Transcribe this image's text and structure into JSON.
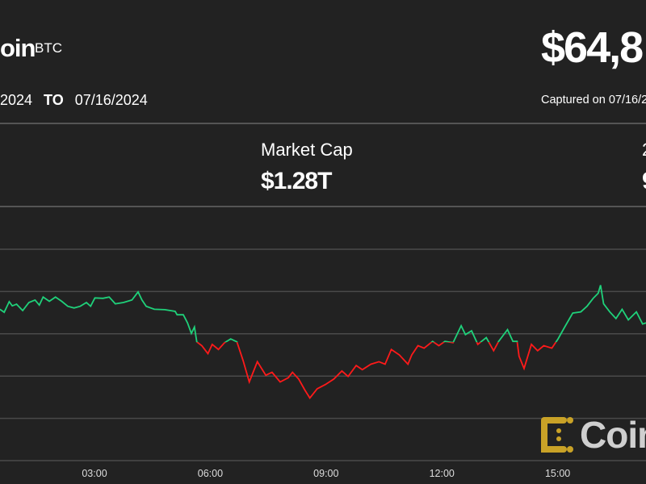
{
  "header": {
    "name_fragment": "oin",
    "ticker": "BTC",
    "price_fragment": "$64,8",
    "range_from_fragment": "2024",
    "range_to_label": "TO",
    "range_to": "07/16/2024",
    "captured_fragment": "Captured on 07/16/2"
  },
  "stats": [
    {
      "label": "Market Cap",
      "value": "$1.28T"
    },
    {
      "label_fragment": "2",
      "value_fragment": "9"
    }
  ],
  "logo": {
    "text_fragment": "Coin",
    "color": "#c9a227"
  },
  "colors": {
    "background": "#222222",
    "up": "#1fd17a",
    "down": "#ff1a1a",
    "grid": "#4a4a4a"
  },
  "chart_data": {
    "type": "line",
    "title": "",
    "xlabel": "",
    "ylabel": "",
    "x_unit": "hour of day",
    "x_tick_labels": [
      "03:00",
      "06:00",
      "09:00",
      "12:00",
      "15:00"
    ],
    "x_ticks": [
      3,
      6,
      9,
      12,
      15
    ],
    "y_axis_labels_shown": false,
    "y_grid_levels": [
      0,
      1,
      2,
      3,
      4,
      5
    ],
    "ylim": [
      0,
      5
    ],
    "grid": true,
    "baseline_level": 2.8,
    "coloring": "green above baseline, red below",
    "x": [
      0.55,
      0.66,
      0.79,
      0.87,
      0.98,
      1.14,
      1.3,
      1.46,
      1.57,
      1.67,
      1.83,
      1.99,
      2.15,
      2.31,
      2.47,
      2.63,
      2.79,
      2.9,
      3.01,
      3.22,
      3.38,
      3.54,
      3.75,
      3.97,
      4.13,
      4.23,
      4.34,
      4.55,
      4.82,
      5.09,
      5.14,
      5.3,
      5.41,
      5.51,
      5.59,
      5.65,
      5.78,
      5.94,
      6.05,
      6.21,
      6.37,
      6.53,
      6.69,
      6.85,
      7.01,
      7.22,
      7.44,
      7.6,
      7.81,
      8.02,
      8.13,
      8.29,
      8.45,
      8.58,
      8.77,
      8.98,
      9.2,
      9.41,
      9.57,
      9.78,
      9.94,
      10.16,
      10.37,
      10.53,
      10.69,
      10.9,
      11.12,
      11.22,
      11.38,
      11.54,
      11.76,
      11.92,
      12.08,
      12.29,
      12.5,
      12.61,
      12.77,
      12.93,
      13.15,
      13.34,
      13.47,
      13.7,
      13.84,
      13.95,
      14.0,
      14.13,
      14.32,
      14.48,
      14.64,
      14.85,
      15.01,
      15.17,
      15.39,
      15.6,
      15.76,
      15.92,
      16.05,
      16.11,
      16.19,
      16.35,
      16.51,
      16.67,
      16.83,
      17.04,
      17.2,
      17.29
    ],
    "y": [
      3.58,
      3.51,
      3.76,
      3.66,
      3.7,
      3.55,
      3.74,
      3.8,
      3.68,
      3.87,
      3.77,
      3.87,
      3.77,
      3.65,
      3.61,
      3.65,
      3.74,
      3.65,
      3.85,
      3.84,
      3.87,
      3.71,
      3.74,
      3.8,
      3.99,
      3.8,
      3.65,
      3.58,
      3.57,
      3.53,
      3.45,
      3.45,
      3.26,
      3.01,
      3.16,
      2.81,
      2.72,
      2.53,
      2.75,
      2.63,
      2.79,
      2.88,
      2.81,
      2.37,
      1.86,
      2.34,
      2.02,
      2.09,
      1.86,
      1.96,
      2.09,
      1.93,
      1.67,
      1.48,
      1.7,
      1.8,
      1.93,
      2.12,
      1.99,
      2.25,
      2.15,
      2.28,
      2.34,
      2.28,
      2.63,
      2.5,
      2.28,
      2.5,
      2.72,
      2.66,
      2.82,
      2.72,
      2.82,
      2.79,
      3.19,
      2.98,
      3.07,
      2.75,
      2.91,
      2.6,
      2.82,
      3.1,
      2.82,
      2.82,
      2.47,
      2.18,
      2.75,
      2.6,
      2.72,
      2.66,
      2.88,
      3.14,
      3.49,
      3.52,
      3.65,
      3.84,
      3.96,
      4.15,
      3.71,
      3.52,
      3.36,
      3.58,
      3.33,
      3.52,
      3.23,
      3.26
    ]
  }
}
